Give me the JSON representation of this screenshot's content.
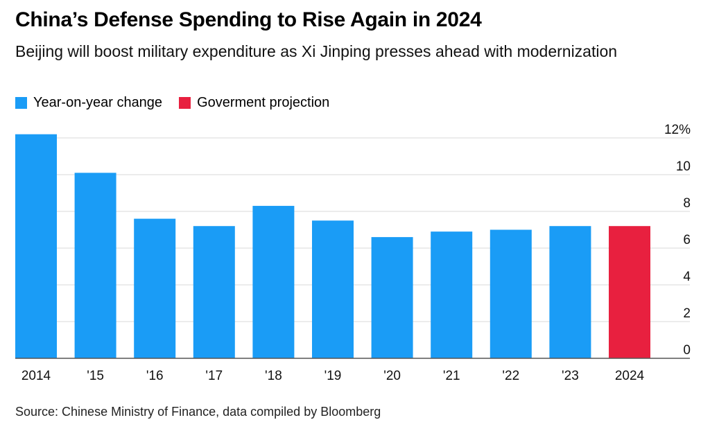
{
  "title": "China’s Defense Spending to Rise Again in 2024",
  "subtitle": "Beijing will boost military expenditure as Xi Jinping presses ahead with modernization",
  "legend": [
    {
      "label": "Year-on-year change",
      "color": "#1a9cf6"
    },
    {
      "label": "Goverment projection",
      "color": "#e8203f"
    }
  ],
  "source": "Source: Chinese Ministry of Finance, data compiled by Bloomberg",
  "chart_data": {
    "type": "bar",
    "categories": [
      "2014",
      "'15",
      "'16",
      "'17",
      "'18",
      "'19",
      "'20",
      "'21",
      "'22",
      "'23",
      "2024"
    ],
    "series": [
      {
        "name": "Year-on-year change",
        "color": "#1a9cf6",
        "values": [
          12.2,
          10.1,
          7.6,
          7.2,
          8.3,
          7.5,
          6.6,
          6.9,
          7.0,
          7.2,
          null
        ]
      },
      {
        "name": "Goverment projection",
        "color": "#e8203f",
        "values": [
          null,
          null,
          null,
          null,
          null,
          null,
          null,
          null,
          null,
          null,
          7.2
        ]
      }
    ],
    "yticks": [
      0,
      2,
      4,
      6,
      8,
      10,
      12
    ],
    "ytick_labels": [
      "0",
      "2",
      "4",
      "6",
      "8",
      "10",
      "12%"
    ],
    "ylim": [
      0,
      12
    ],
    "xlabel": "",
    "ylabel": "",
    "grid": true,
    "legend_position": "top-left"
  }
}
